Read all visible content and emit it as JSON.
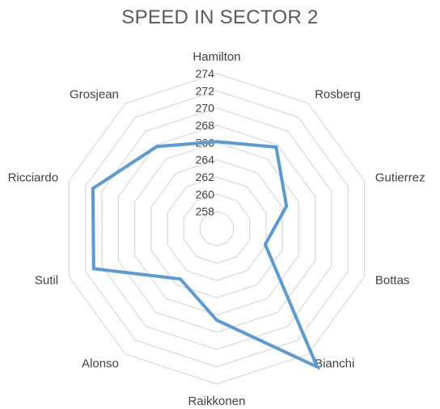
{
  "chart_data": {
    "type": "radar",
    "title": "SPEED IN SECTOR 2",
    "categories": [
      "Hamilton",
      "Rosberg",
      "Gutierrez",
      "Bottas",
      "Bianchi",
      "Raikkonen",
      "Alonso",
      "Sutil",
      "Ricciardo",
      "Grosjean"
    ],
    "series": [
      {
        "values": [
          266.1,
          267.7,
          264.5,
          261.9,
          275.8,
          266.6,
          263.2,
          271.0,
          271.1,
          267.8
        ]
      }
    ],
    "rlim": [
      256,
      274
    ],
    "ticks": [
      258,
      260,
      262,
      264,
      266,
      268,
      270,
      272,
      274
    ],
    "grid": true,
    "legend": "none",
    "colors": {
      "series": "#5b9bd5",
      "grid": "#d9d9d9",
      "text": "#404040",
      "title": "#595959"
    }
  }
}
